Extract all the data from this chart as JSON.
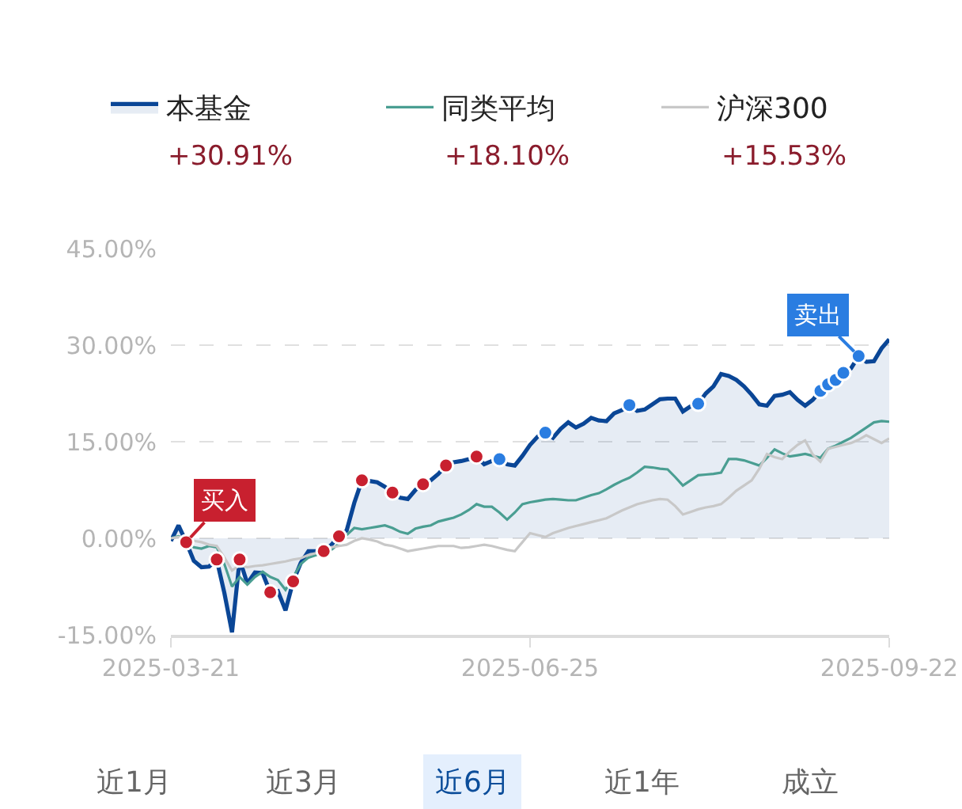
{
  "chart_data": {
    "type": "line",
    "categories": [
      "2025-03-21",
      null,
      null,
      null,
      null,
      null,
      null,
      null,
      null,
      null,
      null,
      null,
      null,
      null,
      null,
      null,
      null,
      null,
      null,
      null,
      null,
      null,
      null,
      null,
      null,
      null,
      null,
      null,
      null,
      null,
      null,
      null,
      null,
      null,
      null,
      null,
      null,
      null,
      null,
      null,
      null,
      null,
      null,
      null,
      null,
      null,
      null,
      "2025-06-25",
      null,
      null,
      null,
      null,
      null,
      null,
      null,
      null,
      null,
      null,
      null,
      null,
      null,
      null,
      null,
      null,
      null,
      null,
      null,
      null,
      null,
      null,
      null,
      null,
      null,
      null,
      null,
      null,
      null,
      null,
      null,
      null,
      null,
      null,
      null,
      null,
      null,
      null,
      null,
      null,
      null,
      null,
      null,
      null,
      null,
      null,
      "2025-09-22"
    ],
    "series": [
      {
        "name": "本基金",
        "type": "area",
        "color": "#0a4696",
        "values": [
          -0.4,
          2.0,
          -0.6,
          -3.5,
          -4.5,
          -4.4,
          -3.3,
          -8.5,
          -14.6,
          -3.3,
          -7.0,
          -5.3,
          -5.4,
          -8.4,
          -8.2,
          -11.2,
          -6.7,
          -3.8,
          -2.0,
          -2.0,
          -2.0,
          -1.0,
          0.3,
          1.2,
          5.5,
          9.0,
          8.9,
          8.7,
          8.0,
          7.1,
          6.3,
          6.1,
          7.5,
          8.4,
          9.0,
          10.0,
          11.3,
          11.8,
          12.0,
          12.3,
          12.7,
          11.5,
          12.0,
          12.3,
          11.5,
          11.3,
          12.8,
          14.5,
          15.8,
          16.4,
          15.6,
          17.0,
          18.0,
          17.2,
          17.8,
          18.7,
          18.3,
          18.2,
          19.4,
          19.9,
          20.7,
          19.8,
          20.0,
          20.8,
          21.6,
          21.7,
          21.7,
          19.7,
          20.5,
          20.9,
          22.5,
          23.6,
          25.5,
          25.2,
          24.6,
          23.6,
          22.3,
          20.8,
          20.6,
          22.1,
          22.3,
          22.7,
          21.5,
          20.6,
          21.5,
          22.9,
          23.9,
          24.6,
          25.7,
          26.4,
          28.3,
          27.4,
          27.5,
          29.5,
          30.9
        ]
      },
      {
        "name": "同类平均",
        "color": "#4a9e92",
        "values": [
          0.0,
          0.3,
          -0.3,
          -1.4,
          -1.6,
          -1.2,
          -1.4,
          -4.0,
          -7.5,
          -6.0,
          -7.2,
          -6.0,
          -5.2,
          -6.0,
          -6.5,
          -8.0,
          -6.0,
          -4.0,
          -3.0,
          -2.6,
          -2.3,
          -1.8,
          -0.8,
          0.5,
          1.6,
          1.4,
          1.6,
          1.8,
          2.0,
          1.6,
          1.0,
          0.7,
          1.5,
          1.8,
          2.0,
          2.6,
          2.9,
          3.2,
          3.7,
          4.4,
          5.3,
          4.9,
          4.9,
          4.0,
          2.9,
          4.0,
          5.3,
          5.6,
          5.8,
          6.0,
          6.1,
          6.0,
          5.9,
          5.9,
          6.3,
          6.7,
          7.0,
          7.6,
          8.3,
          8.9,
          9.4,
          10.2,
          11.1,
          11.0,
          10.8,
          10.7,
          9.5,
          8.2,
          9.0,
          9.8,
          9.9,
          10.0,
          10.2,
          12.3,
          12.3,
          12.1,
          11.7,
          11.3,
          12.5,
          13.8,
          13.2,
          12.7,
          12.9,
          13.1,
          12.8,
          12.5,
          13.9,
          14.4,
          15.0,
          15.6,
          16.4,
          17.2,
          18.0,
          18.2,
          18.1
        ]
      },
      {
        "name": "沪深300",
        "color": "#c8c8c8",
        "values": [
          0.0,
          0.2,
          -0.2,
          -0.4,
          -0.6,
          -1.0,
          -1.2,
          -3.0,
          -5.0,
          -4.2,
          -4.5,
          -4.3,
          -4.2,
          -4.0,
          -3.8,
          -3.6,
          -3.3,
          -3.1,
          -2.6,
          -2.3,
          -2.0,
          -1.4,
          -1.2,
          -1.0,
          -0.4,
          0.0,
          -0.2,
          -0.5,
          -1.0,
          -1.2,
          -1.6,
          -2.0,
          -1.8,
          -1.6,
          -1.4,
          -1.2,
          -1.2,
          -1.2,
          -1.5,
          -1.4,
          -1.2,
          -1.0,
          -1.2,
          -1.5,
          -1.8,
          -2.0,
          -0.6,
          0.8,
          0.5,
          0.2,
          0.8,
          1.2,
          1.6,
          1.9,
          2.2,
          2.5,
          2.8,
          3.1,
          3.7,
          4.3,
          4.8,
          5.3,
          5.6,
          5.9,
          6.1,
          6.0,
          5.0,
          3.7,
          4.1,
          4.5,
          4.8,
          5.0,
          5.3,
          6.3,
          7.4,
          8.2,
          9.0,
          10.8,
          13.1,
          12.6,
          12.3,
          13.5,
          14.5,
          15.2,
          13.0,
          11.9,
          13.9,
          14.2,
          14.5,
          14.8,
          15.3,
          16.0,
          15.4,
          14.8,
          15.5
        ]
      },
      {
        "name": "买入",
        "type": "scatter",
        "marker": "circle",
        "color": "#c8202f",
        "values": [
          null,
          null,
          -0.6,
          null,
          null,
          null,
          -3.3,
          null,
          null,
          -3.3,
          null,
          null,
          null,
          -8.4,
          null,
          null,
          -6.7,
          null,
          null,
          null,
          -2.0,
          null,
          0.3,
          null,
          null,
          9.0,
          null,
          null,
          null,
          7.1,
          null,
          null,
          null,
          8.4,
          null,
          null,
          11.3,
          null,
          null,
          null,
          12.7,
          null,
          null,
          null,
          null,
          null,
          null,
          null,
          null,
          null,
          null,
          null,
          null,
          null,
          null,
          null,
          null,
          null,
          null,
          null,
          null,
          null,
          null,
          null,
          null,
          null,
          null,
          null,
          null,
          null,
          null,
          null,
          null,
          null,
          null,
          null,
          null,
          null,
          null,
          null,
          null,
          null,
          null,
          null,
          null,
          null,
          null,
          null,
          null,
          null,
          null,
          null,
          null,
          null,
          null
        ]
      },
      {
        "name": "卖出",
        "type": "scatter",
        "marker": "circle",
        "color": "#2a7de1",
        "values": [
          null,
          null,
          null,
          null,
          null,
          null,
          null,
          null,
          null,
          null,
          null,
          null,
          null,
          null,
          null,
          null,
          null,
          null,
          null,
          null,
          null,
          null,
          null,
          null,
          null,
          null,
          null,
          null,
          null,
          null,
          null,
          null,
          null,
          null,
          null,
          null,
          null,
          null,
          null,
          null,
          null,
          null,
          null,
          12.3,
          null,
          null,
          null,
          null,
          null,
          16.4,
          null,
          null,
          null,
          null,
          null,
          null,
          null,
          null,
          null,
          null,
          20.7,
          null,
          null,
          null,
          null,
          null,
          null,
          null,
          null,
          20.9,
          null,
          null,
          null,
          null,
          null,
          null,
          null,
          null,
          null,
          null,
          null,
          null,
          null,
          null,
          null,
          22.9,
          23.9,
          24.6,
          25.7,
          null,
          28.3,
          null,
          null,
          null,
          null
        ]
      }
    ],
    "ylim": [
      -15,
      45
    ],
    "yticks": [
      {
        "value": -15,
        "label": "-15.00%"
      },
      {
        "value": 0,
        "label": "0.00%"
      },
      {
        "value": 15,
        "label": "15.00%"
      },
      {
        "value": 30,
        "label": "30.00%"
      },
      {
        "value": 45,
        "label": "45.00%"
      }
    ],
    "grid": "y",
    "legend": "top",
    "annotations": [
      "+30.91%",
      "+18.10%",
      "+15.53%",
      "近1月",
      "近3月",
      "近6月",
      "近1年",
      "成立"
    ]
  }
}
